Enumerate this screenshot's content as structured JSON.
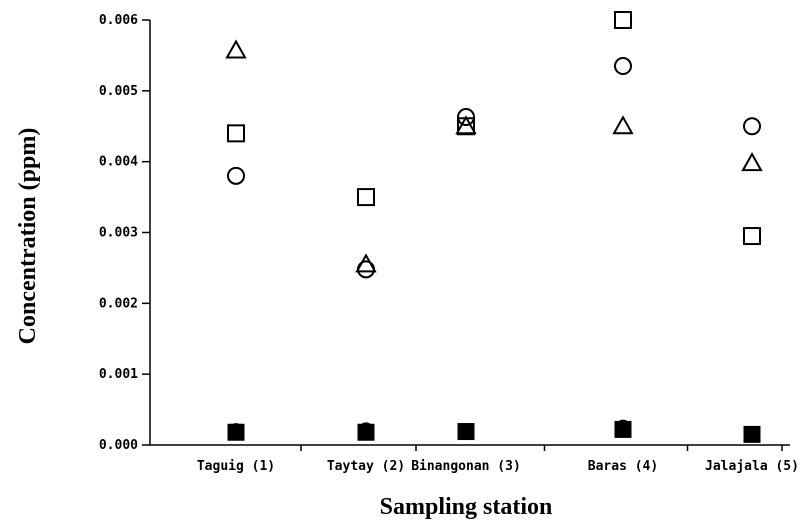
{
  "chart_data": {
    "type": "scatter",
    "title": "",
    "xlabel": "Sampling station",
    "ylabel": "Concentration (ppm)",
    "categories": [
      "Taguig (1)",
      "Taytay (2)",
      "Binangonan (3)",
      "Baras (4)",
      "Jalajala (5)"
    ],
    "ylim": [
      0,
      0.006
    ],
    "yticks": [
      0.0,
      0.001,
      0.002,
      0.003,
      0.004,
      0.005,
      0.006
    ],
    "ytick_labels": [
      "0.000",
      "0.001",
      "0.002",
      "0.003",
      "0.004",
      "0.005",
      "0.006"
    ],
    "grid": false,
    "legend": "none",
    "series": [
      {
        "marker": "open-square",
        "values": [
          0.0044,
          0.0035,
          0.0045,
          0.006,
          0.00295
        ]
      },
      {
        "marker": "open-circle",
        "values": [
          0.0038,
          0.00248,
          0.00463,
          0.00535,
          0.0045
        ]
      },
      {
        "marker": "open-triangle",
        "values": [
          0.00557,
          0.00255,
          0.0045,
          0.0045,
          0.00398
        ]
      },
      {
        "marker": "filled-square",
        "values": [
          0.00018,
          0.00018,
          0.00019,
          0.00022,
          0.00015
        ]
      },
      {
        "marker": "filled-circle",
        "values": [
          0.00021,
          0.00022,
          0.00021,
          0.00026,
          0.00017
        ]
      }
    ]
  }
}
